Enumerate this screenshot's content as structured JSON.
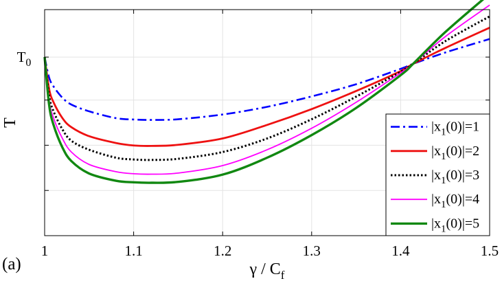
{
  "panel_label": "(a)",
  "chart_data": {
    "type": "line",
    "xlabel": "γ / C",
    "xlabel_sub": "f",
    "ylabel": "T",
    "xlim": [
      1.0,
      1.5
    ],
    "ylim": [
      0,
      1
    ],
    "x_ticks": [
      "1",
      "1.1",
      "1.2",
      "1.3",
      "1.4",
      "1.5"
    ],
    "x_tick_values": [
      1.0,
      1.1,
      1.2,
      1.3,
      1.4,
      1.5
    ],
    "y_tick_label": "T",
    "y_tick_sub": "0",
    "y_tick_value": 0.79,
    "y_ticks_unlabeled": [
      0.0,
      0.2,
      0.4,
      0.6,
      0.79,
      1.0
    ],
    "grid": true,
    "legend_position": "bottom-right",
    "series": [
      {
        "name": "|x1(0)|=1",
        "name_main": "|x",
        "name_sub": "1",
        "name_rest": "(0)|=1",
        "color": "#0000ff",
        "style": "dashdot",
        "width": 2.6,
        "x": [
          1.0,
          1.005,
          1.01,
          1.02,
          1.03,
          1.05,
          1.08,
          1.1,
          1.12,
          1.15,
          1.2,
          1.25,
          1.3,
          1.35,
          1.4,
          1.414,
          1.45,
          1.5
        ],
        "y": [
          0.79,
          0.7,
          0.66,
          0.61,
          0.58,
          0.55,
          0.52,
          0.514,
          0.512,
          0.515,
          0.536,
          0.57,
          0.616,
          0.67,
          0.738,
          0.76,
          0.81,
          0.87
        ]
      },
      {
        "name": "|x1(0)|=2",
        "name_main": "|x",
        "name_sub": "1",
        "name_rest": "(0)|=2",
        "color": "#ee1111",
        "style": "solid",
        "width": 2.8,
        "x": [
          1.0,
          1.005,
          1.01,
          1.02,
          1.03,
          1.05,
          1.08,
          1.1,
          1.12,
          1.15,
          1.2,
          1.25,
          1.3,
          1.35,
          1.4,
          1.414,
          1.45,
          1.5
        ],
        "y": [
          0.79,
          0.65,
          0.59,
          0.52,
          0.48,
          0.44,
          0.41,
          0.399,
          0.397,
          0.402,
          0.43,
          0.49,
          0.56,
          0.64,
          0.728,
          0.76,
          0.83,
          0.92
        ]
      },
      {
        "name": "|x1(0)|=3",
        "name_main": "|x",
        "name_sub": "1",
        "name_rest": "(0)|=3",
        "color": "#000000",
        "style": "dotted",
        "width": 3.0,
        "x": [
          1.0,
          1.005,
          1.01,
          1.02,
          1.03,
          1.05,
          1.08,
          1.1,
          1.12,
          1.15,
          1.2,
          1.25,
          1.3,
          1.35,
          1.4,
          1.414,
          1.45,
          1.5
        ],
        "y": [
          0.79,
          0.62,
          0.55,
          0.47,
          0.42,
          0.38,
          0.345,
          0.337,
          0.335,
          0.34,
          0.37,
          0.43,
          0.515,
          0.615,
          0.725,
          0.76,
          0.86,
          0.97
        ]
      },
      {
        "name": "|x1(0)|=4",
        "name_main": "|x",
        "name_sub": "1",
        "name_rest": "(0)|=4",
        "color": "#ff00ff",
        "style": "solid",
        "width": 1.8,
        "x": [
          1.0,
          1.005,
          1.01,
          1.02,
          1.03,
          1.05,
          1.08,
          1.1,
          1.12,
          1.15,
          1.2,
          1.25,
          1.3,
          1.35,
          1.4,
          1.414,
          1.45,
          1.5
        ],
        "y": [
          0.79,
          0.6,
          0.52,
          0.43,
          0.37,
          0.315,
          0.283,
          0.274,
          0.272,
          0.277,
          0.31,
          0.38,
          0.475,
          0.59,
          0.72,
          0.76,
          0.88,
          1.02
        ]
      },
      {
        "name": "|x1(0)|=5",
        "name_main": "|x",
        "name_sub": "1",
        "name_rest": "(0)|=5",
        "color": "#118811",
        "style": "solid",
        "width": 3.4,
        "x": [
          1.0,
          1.005,
          1.01,
          1.02,
          1.03,
          1.05,
          1.08,
          1.1,
          1.12,
          1.15,
          1.2,
          1.25,
          1.3,
          1.35,
          1.4,
          1.414,
          1.45,
          1.5
        ],
        "y": [
          0.79,
          0.58,
          0.49,
          0.39,
          0.33,
          0.275,
          0.243,
          0.236,
          0.234,
          0.238,
          0.27,
          0.345,
          0.445,
          0.565,
          0.71,
          0.76,
          0.9,
          1.07
        ]
      }
    ]
  }
}
